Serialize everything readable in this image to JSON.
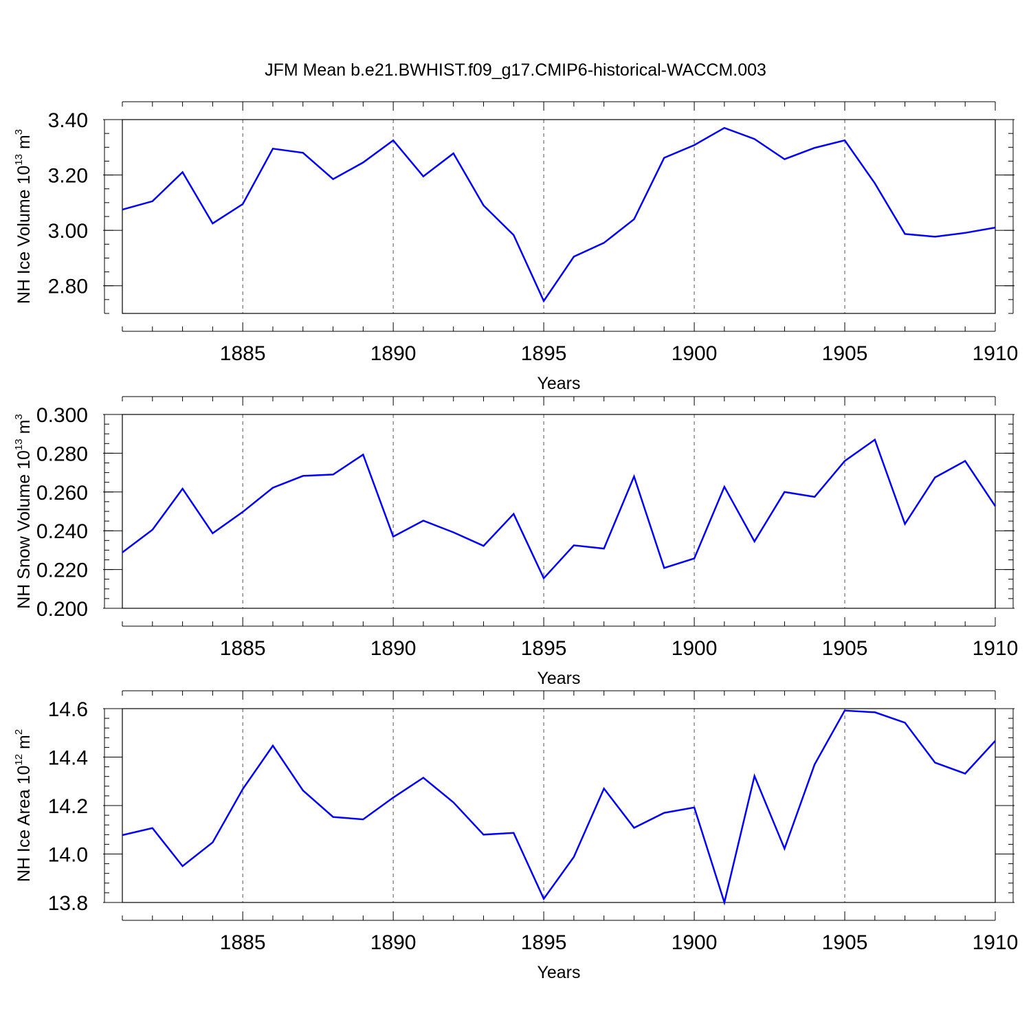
{
  "title": "JFM Mean b.e21.BWHIST.f09_g17.CMIP6-historical-WACCM.003",
  "series_color": "#0000ff",
  "chart_data": [
    {
      "type": "line",
      "ylabel": "NH Ice Volume 10",
      "ylabel_exp": "13",
      "ylabel_unit": " m",
      "ylabel_unit_exp": "3",
      "xlabel": "Years",
      "xlim": [
        1881,
        1910
      ],
      "ylim": [
        2.7,
        3.4
      ],
      "yticks": [
        2.8,
        3.0,
        3.2,
        3.4
      ],
      "ytick_labels": [
        "2.80",
        "3.00",
        "3.20",
        "3.40"
      ],
      "yminor_step": 0.05,
      "xticks": [
        1885,
        1890,
        1895,
        1900,
        1905,
        1910
      ],
      "xtick_labels": [
        "1885",
        "1890",
        "1895",
        "1900",
        "1905",
        "1910"
      ],
      "x": [
        1881,
        1882,
        1883,
        1884,
        1885,
        1886,
        1887,
        1888,
        1889,
        1890,
        1891,
        1892,
        1893,
        1894,
        1895,
        1896,
        1897,
        1898,
        1899,
        1900,
        1901,
        1902,
        1903,
        1904,
        1905,
        1906,
        1907,
        1908,
        1909,
        1910
      ],
      "values": [
        3.075,
        3.105,
        3.21,
        3.025,
        3.095,
        3.295,
        3.28,
        3.185,
        3.245,
        3.325,
        3.195,
        3.278,
        3.09,
        2.983,
        2.745,
        2.905,
        2.955,
        3.04,
        3.262,
        3.308,
        3.37,
        3.33,
        3.257,
        3.298,
        3.325,
        3.17,
        2.987,
        2.977,
        2.991,
        3.01
      ]
    },
    {
      "type": "line",
      "ylabel": "NH Snow Volume 10",
      "ylabel_exp": "13",
      "ylabel_unit": " m",
      "ylabel_unit_exp": "3",
      "xlabel": "Years",
      "xlim": [
        1881,
        1910
      ],
      "ylim": [
        0.2,
        0.3
      ],
      "yticks": [
        0.2,
        0.22,
        0.24,
        0.26,
        0.28,
        0.3
      ],
      "ytick_labels": [
        "0.200",
        "0.220",
        "0.240",
        "0.260",
        "0.280",
        "0.300"
      ],
      "yminor_step": 0.005,
      "xticks": [
        1885,
        1890,
        1895,
        1900,
        1905,
        1910
      ],
      "xtick_labels": [
        "1885",
        "1890",
        "1895",
        "1900",
        "1905",
        "1910"
      ],
      "x": [
        1881,
        1882,
        1883,
        1884,
        1885,
        1886,
        1887,
        1888,
        1889,
        1890,
        1891,
        1892,
        1893,
        1894,
        1895,
        1896,
        1897,
        1898,
        1899,
        1900,
        1901,
        1902,
        1903,
        1904,
        1905,
        1906,
        1907,
        1908,
        1909,
        1910
      ],
      "values": [
        0.2288,
        0.2405,
        0.2617,
        0.2387,
        0.2497,
        0.2622,
        0.2683,
        0.269,
        0.2793,
        0.237,
        0.2452,
        0.2392,
        0.2322,
        0.2487,
        0.2155,
        0.2325,
        0.2308,
        0.268,
        0.2208,
        0.2257,
        0.2627,
        0.2345,
        0.26,
        0.2575,
        0.276,
        0.287,
        0.2435,
        0.2675,
        0.276,
        0.2527
      ]
    },
    {
      "type": "line",
      "ylabel": "NH Ice Area 10",
      "ylabel_exp": "12",
      "ylabel_unit": " m",
      "ylabel_unit_exp": "2",
      "xlabel": "Years",
      "xlim": [
        1881,
        1910
      ],
      "ylim": [
        13.8,
        14.6
      ],
      "yticks": [
        13.8,
        14.0,
        14.2,
        14.4,
        14.6
      ],
      "ytick_labels": [
        "13.8",
        "14.0",
        "14.2",
        "14.4",
        "14.6"
      ],
      "yminor_step": 0.04,
      "xticks": [
        1885,
        1890,
        1895,
        1900,
        1905,
        1910
      ],
      "xtick_labels": [
        "1885",
        "1890",
        "1895",
        "1900",
        "1905",
        "1910"
      ],
      "x": [
        1881,
        1882,
        1883,
        1884,
        1885,
        1886,
        1887,
        1888,
        1889,
        1890,
        1891,
        1892,
        1893,
        1894,
        1895,
        1896,
        1897,
        1898,
        1899,
        1900,
        1901,
        1902,
        1903,
        1904,
        1905,
        1906,
        1907,
        1908,
        1909,
        1910
      ],
      "values": [
        14.078,
        14.107,
        13.95,
        14.048,
        14.268,
        14.447,
        14.262,
        14.153,
        14.143,
        14.233,
        14.315,
        14.213,
        14.08,
        14.087,
        13.815,
        13.988,
        14.27,
        14.108,
        14.17,
        14.192,
        13.8,
        14.322,
        14.022,
        14.37,
        14.592,
        14.585,
        14.542,
        14.377,
        14.332,
        14.467
      ]
    }
  ]
}
